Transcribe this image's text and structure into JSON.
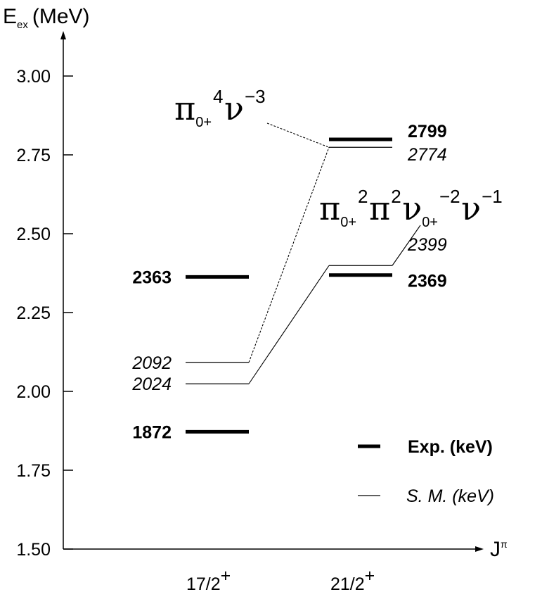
{
  "chart_data": {
    "type": "level-scheme",
    "y_axis_label_main": "E",
    "y_axis_label_sub": "ex",
    "y_axis_label_unit": "(MeV)",
    "x_axis_label_main": "J",
    "x_axis_label_sup": "π",
    "ylim": [
      1.5,
      3.1
    ],
    "y_ticks": [
      "1.50",
      "1.75",
      "2.00",
      "2.25",
      "2.50",
      "2.75",
      "3.00"
    ],
    "categories": [
      {
        "main": "17/2",
        "sup": "+"
      },
      {
        "main": "21/2",
        "sup": "+"
      }
    ],
    "experiment": {
      "name": "Exp. (keV)",
      "levels": [
        {
          "spin": "17/2+",
          "energy_keV": 1872,
          "label": "1872"
        },
        {
          "spin": "17/2+",
          "energy_keV": 2363,
          "label": "2363"
        },
        {
          "spin": "21/2+",
          "energy_keV": 2369,
          "label": "2369"
        },
        {
          "spin": "21/2+",
          "energy_keV": 2799,
          "label": "2799"
        }
      ]
    },
    "shell_model": {
      "name": "S. M. (keV)",
      "levels": [
        {
          "spin": "17/2+",
          "energy_keV": 2024,
          "label": "2024"
        },
        {
          "spin": "17/2+",
          "energy_keV": 2092,
          "label": "2092"
        },
        {
          "spin": "21/2+",
          "energy_keV": 2399,
          "label": "2399"
        },
        {
          "spin": "21/2+",
          "energy_keV": 2774,
          "label": "2774"
        }
      ]
    },
    "configurations": [
      {
        "connects": [
          "2092",
          "2774"
        ],
        "style": "dashed",
        "parts": [
          {
            "base": "π",
            "sub": "0+",
            "sup": "4"
          },
          {
            "base": "ν",
            "sub": "",
            "sup": "−3"
          }
        ]
      },
      {
        "connects": [
          "2024",
          "2399"
        ],
        "style": "solid",
        "parts": [
          {
            "base": "π",
            "sub": "0+",
            "sup": "2"
          },
          {
            "base": "π",
            "sub": "",
            "sup": "2"
          },
          {
            "base": "ν",
            "sub": "0+",
            "sup": "−2"
          },
          {
            "base": "ν",
            "sub": "",
            "sup": "−1"
          }
        ]
      }
    ]
  }
}
